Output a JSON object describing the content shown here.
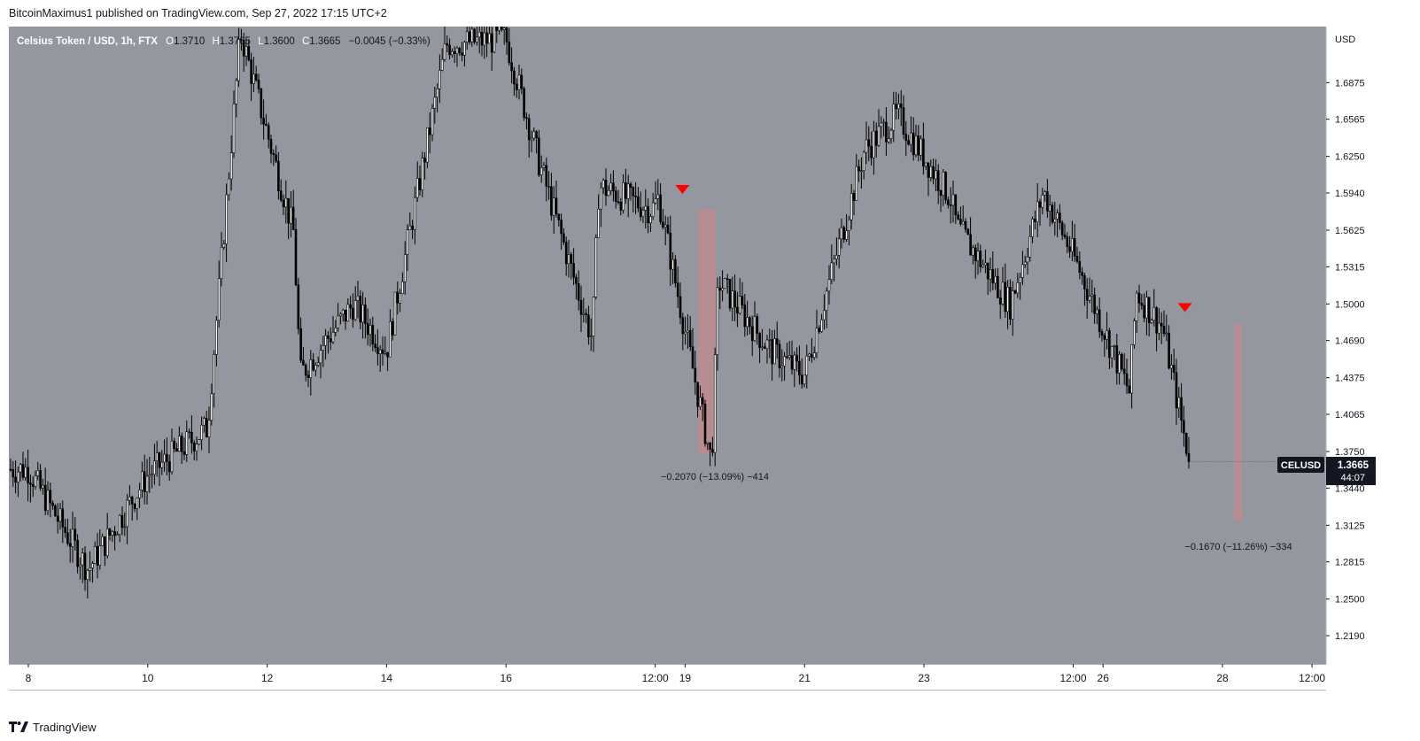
{
  "header": {
    "attribution": "BitcoinMaximus1 published on TradingView.com, Sep 27, 2022 17:15 UTC+2"
  },
  "legend": {
    "symbol": "Celsius Token / USD, 1h, FTX",
    "o_label": "O",
    "o_value": "1.3710",
    "h_label": "H",
    "h_value": "1.3765",
    "l_label": "L",
    "l_value": "1.3600",
    "c_label": "C",
    "c_value": "1.3665",
    "change": "−0.0045 (−0.33%)"
  },
  "price_axis": {
    "currency": "USD",
    "ticks": [
      "1.6875",
      "1.6565",
      "1.6250",
      "1.5940",
      "1.5625",
      "1.5315",
      "1.5000",
      "1.4690",
      "1.4375",
      "1.4065",
      "1.3750",
      "1.3440",
      "1.3125",
      "1.2815",
      "1.2500",
      "1.2190"
    ]
  },
  "time_axis": {
    "ticks": [
      "8",
      "10",
      "12",
      "14",
      "16",
      "12:00",
      "19",
      "21",
      "23",
      "12:00",
      "26",
      "28",
      "12:00"
    ]
  },
  "last_price": {
    "symbol": "CELUSD",
    "price": "1.3665",
    "countdown": "44:07"
  },
  "measurements": [
    {
      "label": "−0.2070 (−13.09%) −414"
    },
    {
      "label": "−0.1670 (−11.26%) −334"
    }
  ],
  "colors": {
    "plot_bg": "#94979f",
    "candle": "#000000",
    "marker": "#ff0000",
    "measure": "#c4898d",
    "label_bg": "#131722"
  },
  "footer": {
    "brand": "TradingView"
  },
  "chart_data": {
    "type": "candlestick",
    "title": "Celsius Token / USD, 1h, FTX",
    "ylabel": "USD",
    "ylim": [
      1.195,
      1.735
    ],
    "x_ticks": [
      "8",
      "10",
      "12",
      "14",
      "16",
      "12:00",
      "19",
      "21",
      "23",
      "12:00",
      "26",
      "28",
      "12:00"
    ],
    "last_close": 1.3665,
    "path": [
      [
        "8",
        1.36
      ],
      [
        "9",
        1.275
      ],
      [
        "10",
        1.355
      ],
      [
        "11",
        1.395
      ],
      [
        "12",
        1.73
      ],
      [
        "12",
        1.56
      ],
      [
        "13",
        1.44
      ],
      [
        "13",
        1.5
      ],
      [
        "14",
        1.46
      ],
      [
        "15",
        1.72
      ],
      [
        "16",
        1.725
      ],
      [
        "17",
        1.62
      ],
      [
        "17",
        1.47
      ],
      [
        "18",
        1.6
      ],
      [
        "18",
        1.58
      ],
      [
        "19",
        1.59
      ],
      [
        "19",
        1.365
      ],
      [
        "20",
        1.52
      ],
      [
        "20",
        1.46
      ],
      [
        "21",
        1.44
      ],
      [
        "22",
        1.63
      ],
      [
        "23",
        1.66
      ],
      [
        "23",
        1.59
      ],
      [
        "24",
        1.565
      ],
      [
        "24",
        1.5
      ],
      [
        "25",
        1.595
      ],
      [
        "26",
        1.535
      ],
      [
        "26",
        1.425
      ],
      [
        "27",
        1.51
      ],
      [
        "27",
        1.48
      ],
      [
        "27",
        1.3665
      ]
    ],
    "markers": [
      {
        "type": "sell-arrow",
        "time": "19",
        "price": 1.597
      },
      {
        "type": "sell-arrow",
        "time": "27",
        "price": 1.497
      }
    ],
    "measurements": [
      {
        "change": -0.207,
        "percent": -13.09,
        "ticks": -414,
        "top": 1.58,
        "bottom": 1.373
      },
      {
        "change": -0.167,
        "percent": -11.26,
        "ticks": -334,
        "top": 1.483,
        "bottom": 1.316
      }
    ]
  }
}
